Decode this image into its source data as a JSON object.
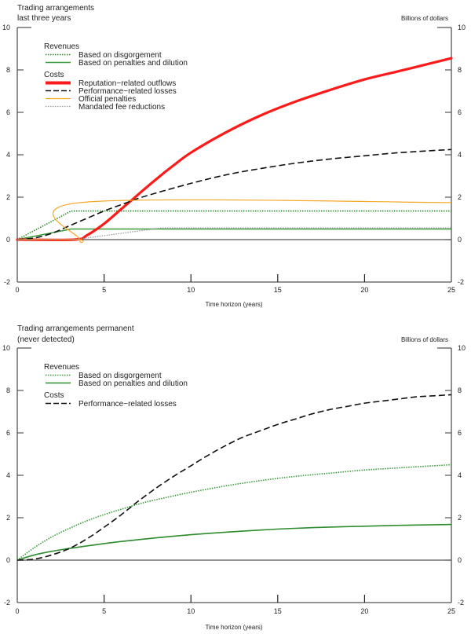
{
  "chart_data": [
    {
      "type": "line",
      "title": "Trading arrangements last three years",
      "title_lines": [
        "Trading arrangements",
        "last three years"
      ],
      "units_label": "Billions of dollars",
      "xlabel": "Time horizon (years)",
      "xlim": [
        0,
        25
      ],
      "ylim": [
        -2,
        10
      ],
      "x_ticks": [
        "0",
        "5",
        "10",
        "15",
        "20",
        "25"
      ],
      "x_tick_values": [
        0,
        5,
        10,
        15,
        20,
        25
      ],
      "y_ticks": [
        "-2",
        "0",
        "2",
        "4",
        "6",
        "8",
        "10"
      ],
      "y_tick_values": [
        -2,
        0,
        2,
        4,
        6,
        8,
        10
      ],
      "grid": false,
      "legend_placement": "top-left",
      "legend_groups": [
        {
          "heading": "Revenues",
          "items": [
            "Based on disgorgement",
            "Based on penalties and dilution"
          ]
        },
        {
          "heading": "Costs",
          "items": [
            "Reputation−related outflows",
            "Performance−related losses",
            "Official penalties",
            "Mandated fee reductions"
          ]
        }
      ],
      "series": [
        {
          "name": "Based on disgorgement",
          "group": "Revenues",
          "style": "dotted",
          "color": "#2e8b2e",
          "x": [
            0,
            3.1,
            25
          ],
          "y": [
            0,
            1.35,
            1.35
          ]
        },
        {
          "name": "Based on penalties and dilution",
          "group": "Revenues",
          "style": "solid",
          "color": "#3a9a3a",
          "x": [
            0,
            3.1,
            25
          ],
          "y": [
            0,
            0.5,
            0.5
          ]
        },
        {
          "name": "Reputation−related outflows",
          "group": "Costs",
          "style": "thick",
          "color": "#ff1a1a",
          "x": [
            0,
            3.3,
            4,
            5,
            6,
            7,
            8,
            9,
            10,
            12,
            14,
            16,
            18,
            20,
            22,
            24,
            25
          ],
          "y": [
            0,
            0,
            0.2,
            0.75,
            1.45,
            2.15,
            2.85,
            3.5,
            4.1,
            5.05,
            5.85,
            6.5,
            7.05,
            7.55,
            7.95,
            8.35,
            8.55
          ]
        },
        {
          "name": "Performance−related losses",
          "group": "Costs",
          "style": "dashed",
          "color": "#111111",
          "x": [
            0,
            1,
            2,
            3,
            4,
            5,
            6,
            7,
            8,
            10,
            12,
            14,
            16,
            18,
            20,
            22,
            25
          ],
          "y": [
            0,
            0.08,
            0.3,
            0.65,
            1.0,
            1.35,
            1.65,
            1.95,
            2.2,
            2.65,
            3.05,
            3.35,
            3.6,
            3.8,
            3.95,
            4.1,
            4.25
          ]
        },
        {
          "name": "Official penalties",
          "group": "Costs",
          "style": "solid-thin",
          "color": "#f5a623",
          "x": [
            0,
            3.5,
            3.6,
            3.65,
            25
          ],
          "y": [
            0,
            0,
            0,
            1.75,
            1.75
          ]
        },
        {
          "name": "Mandated fee reductions",
          "group": "Costs",
          "style": "dotted-gray",
          "color": "#9a9a9a",
          "x": [
            0,
            3.3,
            8.3,
            25
          ],
          "y": [
            0,
            0,
            0.55,
            0.55
          ]
        }
      ]
    },
    {
      "type": "line",
      "title": "Trading arrangements permanent (never detected)",
      "title_lines": [
        "Trading arrangements permanent",
        "(never detected)"
      ],
      "units_label": "Billions of dollars",
      "xlabel": "Time horizon (years)",
      "xlim": [
        0,
        25
      ],
      "ylim": [
        -2,
        10
      ],
      "x_ticks": [
        "0",
        "5",
        "10",
        "15",
        "20",
        "25"
      ],
      "x_tick_values": [
        0,
        5,
        10,
        15,
        20,
        25
      ],
      "y_ticks": [
        "-2",
        "0",
        "2",
        "4",
        "6",
        "8",
        "10"
      ],
      "y_tick_values": [
        -2,
        0,
        2,
        4,
        6,
        8,
        10
      ],
      "grid": false,
      "legend_placement": "top-left",
      "legend_groups": [
        {
          "heading": "Revenues",
          "items": [
            "Based on disgorgement",
            "Based on penalties and dilution"
          ]
        },
        {
          "heading": "Costs",
          "items": [
            "Performance−related losses"
          ]
        }
      ],
      "series": [
        {
          "name": "Based on disgorgement",
          "group": "Revenues",
          "style": "dotted",
          "color": "#3a9a3a",
          "x": [
            0,
            1,
            2,
            3,
            4,
            5,
            6,
            7,
            8,
            10,
            12,
            14,
            16,
            18,
            20,
            22,
            25
          ],
          "y": [
            0,
            0.6,
            1.1,
            1.5,
            1.85,
            2.15,
            2.4,
            2.65,
            2.85,
            3.2,
            3.5,
            3.75,
            3.95,
            4.1,
            4.25,
            4.35,
            4.5
          ]
        },
        {
          "name": "Based on penalties and dilution",
          "group": "Revenues",
          "style": "solid",
          "color": "#2e8b2e",
          "x": [
            0,
            1,
            2,
            3,
            4,
            5,
            6,
            8,
            10,
            12,
            14,
            16,
            18,
            20,
            22,
            25
          ],
          "y": [
            0,
            0.25,
            0.42,
            0.55,
            0.67,
            0.78,
            0.88,
            1.05,
            1.2,
            1.32,
            1.42,
            1.5,
            1.56,
            1.6,
            1.64,
            1.68
          ]
        },
        {
          "name": "Performance−related losses",
          "group": "Costs",
          "style": "dashed",
          "color": "#111111",
          "x": [
            0,
            1,
            2,
            3,
            4,
            5,
            6,
            7,
            8,
            9,
            10,
            11,
            12,
            13,
            14,
            15,
            16,
            17,
            18,
            19,
            20,
            21,
            22,
            23,
            24,
            25
          ],
          "y": [
            0,
            0.05,
            0.25,
            0.55,
            1.0,
            1.55,
            2.15,
            2.8,
            3.4,
            3.95,
            4.45,
            4.95,
            5.4,
            5.8,
            6.1,
            6.4,
            6.65,
            6.9,
            7.1,
            7.25,
            7.4,
            7.5,
            7.6,
            7.7,
            7.75,
            7.8
          ]
        }
      ]
    }
  ]
}
